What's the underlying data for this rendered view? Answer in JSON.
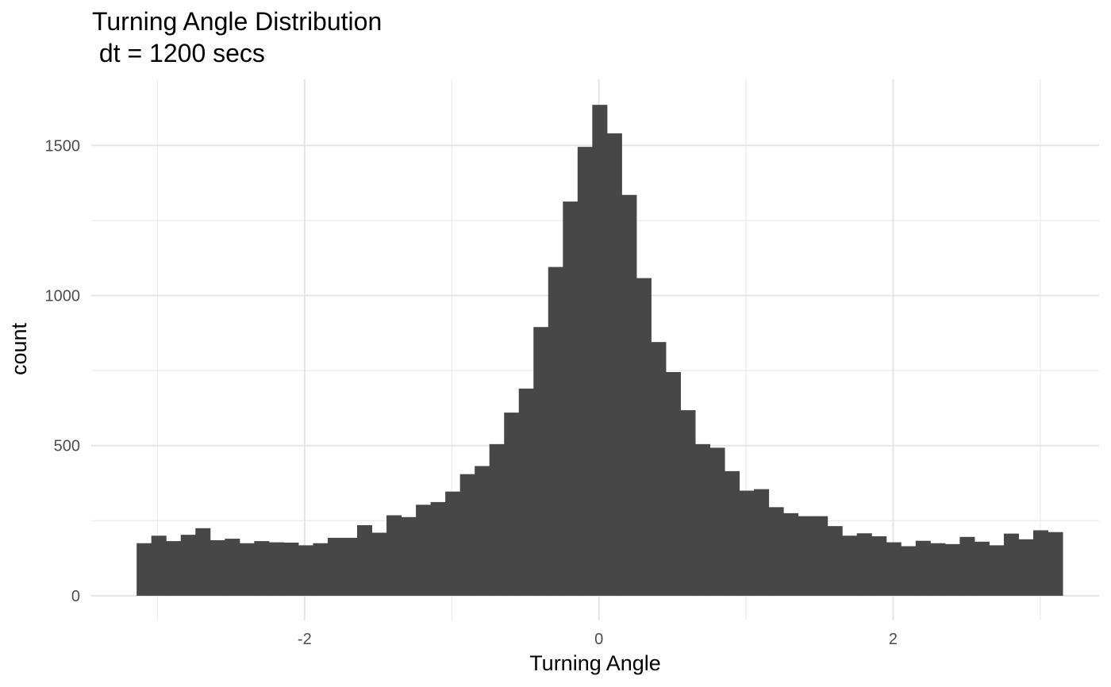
{
  "chart_data": {
    "type": "bar",
    "title": "Turning Angle Distribution",
    "subtitle": " dt = 1200 secs",
    "xlabel": "Turning Angle",
    "ylabel": "count",
    "xlim": [
      -3.45,
      3.4
    ],
    "ylim": [
      -82,
      1720
    ],
    "x_ticks": [
      -2,
      0,
      2
    ],
    "x_tick_labels": [
      "-2",
      "0",
      "2"
    ],
    "y_ticks": [
      0,
      500,
      1000,
      1500
    ],
    "y_tick_labels": [
      "0",
      "500",
      "1000",
      "1500"
    ],
    "grid": true,
    "bar_color": "#474747",
    "bin_start": -3.141593,
    "bin_width": 0.0999,
    "values": [
      175,
      200,
      182,
      203,
      225,
      185,
      190,
      175,
      182,
      178,
      177,
      168,
      175,
      193,
      193,
      235,
      210,
      268,
      262,
      303,
      312,
      347,
      405,
      432,
      505,
      610,
      690,
      895,
      1095,
      1313,
      1495,
      1635,
      1540,
      1335,
      1058,
      845,
      745,
      618,
      505,
      493,
      415,
      350,
      355,
      295,
      275,
      265,
      265,
      232,
      200,
      208,
      198,
      178,
      165,
      183,
      175,
      172,
      196,
      180,
      168,
      207,
      188,
      218,
      212
    ]
  }
}
